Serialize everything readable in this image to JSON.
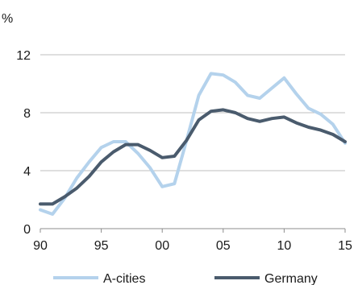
{
  "chart_data": {
    "type": "line",
    "title": "",
    "xlabel": "",
    "ylabel": "%",
    "ylim": [
      0,
      12
    ],
    "xlim": [
      1990,
      2015
    ],
    "yticks": [
      0,
      4,
      8,
      12
    ],
    "xticks": [
      {
        "value": 1990,
        "label": "90"
      },
      {
        "value": 1995,
        "label": "95"
      },
      {
        "value": 2000,
        "label": "00"
      },
      {
        "value": 2005,
        "label": "05"
      },
      {
        "value": 2010,
        "label": "10"
      },
      {
        "value": 2015,
        "label": "15"
      }
    ],
    "grid": "horizontal",
    "legend_position": "bottom",
    "x": [
      1990,
      1991,
      1992,
      1993,
      1994,
      1995,
      1996,
      1997,
      1998,
      1999,
      2000,
      2001,
      2002,
      2003,
      2004,
      2005,
      2006,
      2007,
      2008,
      2009,
      2010,
      2011,
      2012,
      2013,
      2014,
      2015
    ],
    "series": [
      {
        "name": "A-cities",
        "color": "#b4d2ec",
        "values": [
          1.3,
          1.0,
          2.1,
          3.5,
          4.6,
          5.6,
          6.0,
          6.0,
          5.2,
          4.2,
          2.9,
          3.1,
          6.1,
          9.2,
          10.7,
          10.6,
          10.1,
          9.2,
          9.0,
          9.7,
          10.4,
          9.3,
          8.3,
          7.9,
          7.2,
          5.9
        ]
      },
      {
        "name": "Germany",
        "color": "#4a5b6d",
        "values": [
          1.7,
          1.7,
          2.2,
          2.8,
          3.6,
          4.6,
          5.3,
          5.8,
          5.8,
          5.4,
          4.9,
          5.0,
          6.1,
          7.5,
          8.1,
          8.2,
          8.0,
          7.6,
          7.4,
          7.6,
          7.7,
          7.3,
          7.0,
          6.8,
          6.5,
          6.0
        ]
      }
    ]
  }
}
